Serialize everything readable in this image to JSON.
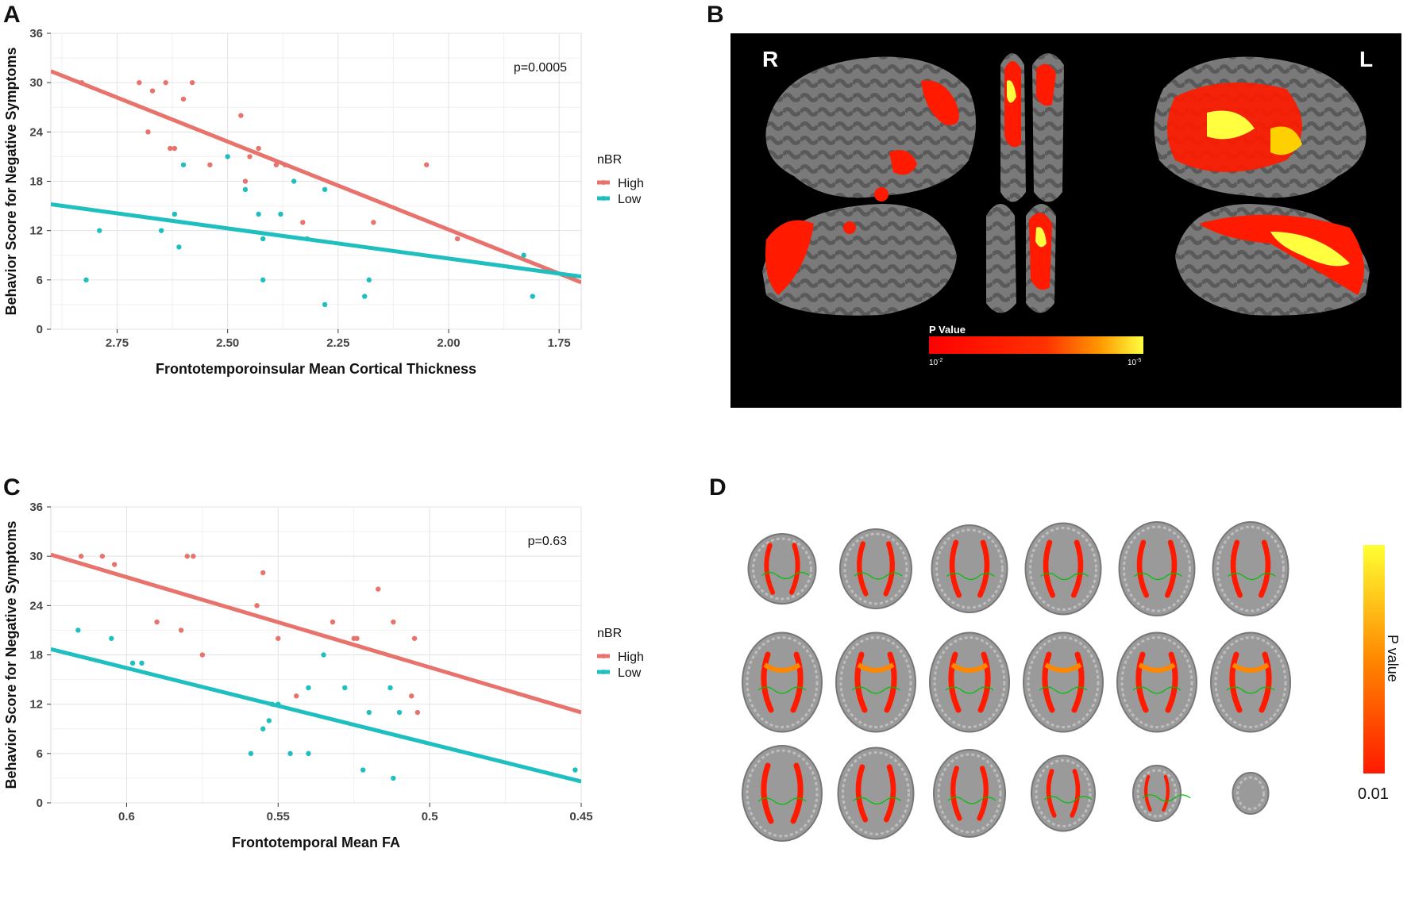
{
  "panels": {
    "a": "A",
    "b": "B",
    "c": "C",
    "d": "D"
  },
  "chart_data": [
    {
      "type": "scatter",
      "id": "chartA",
      "title": "",
      "xlabel": "Frontotemporoinsular Mean Cortical Thickness",
      "ylabel": "Behavior Score for Negative Symptoms",
      "x_reversed": true,
      "xlim": [
        2.9,
        1.7
      ],
      "ylim": [
        0,
        36
      ],
      "xticks": [
        2.75,
        2.5,
        2.25,
        2.0,
        1.75
      ],
      "xtick_labels": [
        "2.75",
        "2.50",
        "2.25",
        "2.00",
        "1.75"
      ],
      "yticks": [
        0,
        6,
        12,
        18,
        24,
        30,
        36
      ],
      "annotation": "p=0.0005",
      "legend_title": "nBR",
      "series": [
        {
          "name": "High",
          "color": "#E8736C",
          "points": [
            [
              2.83,
              30
            ],
            [
              2.7,
              30
            ],
            [
              2.64,
              30
            ],
            [
              2.58,
              30
            ],
            [
              2.67,
              29
            ],
            [
              2.6,
              28
            ],
            [
              2.47,
              26
            ],
            [
              2.68,
              24
            ],
            [
              2.63,
              22
            ],
            [
              2.62,
              22
            ],
            [
              2.43,
              22
            ],
            [
              2.45,
              21
            ],
            [
              2.54,
              20
            ],
            [
              2.39,
              20
            ],
            [
              2.37,
              20
            ],
            [
              2.05,
              20
            ],
            [
              2.46,
              18
            ],
            [
              2.33,
              13
            ],
            [
              2.17,
              13
            ],
            [
              1.98,
              11
            ]
          ],
          "line": [
            [
              2.9,
              31.4
            ],
            [
              1.7,
              5.7
            ]
          ]
        },
        {
          "name": "Low",
          "color": "#1FBFBF",
          "points": [
            [
              2.5,
              21
            ],
            [
              2.6,
              20
            ],
            [
              2.46,
              17
            ],
            [
              2.28,
              17
            ],
            [
              2.35,
              18
            ],
            [
              2.62,
              14
            ],
            [
              2.43,
              14
            ],
            [
              2.38,
              14
            ],
            [
              2.79,
              12
            ],
            [
              2.65,
              12
            ],
            [
              2.42,
              11
            ],
            [
              2.32,
              11
            ],
            [
              2.61,
              10
            ],
            [
              1.83,
              9
            ],
            [
              2.82,
              6
            ],
            [
              2.42,
              6
            ],
            [
              2.18,
              6
            ],
            [
              2.19,
              4
            ],
            [
              1.81,
              4
            ],
            [
              2.28,
              3
            ]
          ],
          "line": [
            [
              2.9,
              15.2
            ],
            [
              1.7,
              6.4
            ]
          ]
        }
      ]
    },
    {
      "type": "scatter",
      "id": "chartC",
      "title": "",
      "xlabel": "Frontotemporal Mean FA",
      "ylabel": "Behavior Score for Negative Symptoms",
      "x_reversed": true,
      "xlim": [
        0.625,
        0.45
      ],
      "ylim": [
        0,
        36
      ],
      "xticks": [
        0.6,
        0.55,
        0.5,
        0.45
      ],
      "xtick_labels": [
        "0.6",
        "0.55",
        "0.5",
        "0.45"
      ],
      "yticks": [
        0,
        6,
        12,
        18,
        24,
        30,
        36
      ],
      "annotation": "p=0.63",
      "legend_title": "nBR",
      "series": [
        {
          "name": "High",
          "color": "#E8736C",
          "points": [
            [
              0.615,
              30
            ],
            [
              0.608,
              30
            ],
            [
              0.604,
              29
            ],
            [
              0.58,
              30
            ],
            [
              0.578,
              30
            ],
            [
              0.555,
              28
            ],
            [
              0.557,
              24
            ],
            [
              0.517,
              26
            ],
            [
              0.59,
              22
            ],
            [
              0.532,
              22
            ],
            [
              0.512,
              22
            ],
            [
              0.582,
              21
            ],
            [
              0.575,
              18
            ],
            [
              0.55,
              20
            ],
            [
              0.525,
              20
            ],
            [
              0.524,
              20
            ],
            [
              0.505,
              20
            ],
            [
              0.544,
              13
            ],
            [
              0.506,
              13
            ],
            [
              0.504,
              11
            ]
          ],
          "line": [
            [
              0.625,
              30.2
            ],
            [
              0.45,
              11.0
            ]
          ]
        },
        {
          "name": "Low",
          "color": "#1FBFBF",
          "points": [
            [
              0.616,
              21
            ],
            [
              0.605,
              20
            ],
            [
              0.598,
              17
            ],
            [
              0.595,
              17
            ],
            [
              0.535,
              18
            ],
            [
              0.54,
              14
            ],
            [
              0.528,
              14
            ],
            [
              0.513,
              14
            ],
            [
              0.52,
              11
            ],
            [
              0.51,
              11
            ],
            [
              0.552,
              12
            ],
            [
              0.55,
              12
            ],
            [
              0.553,
              10
            ],
            [
              0.555,
              9
            ],
            [
              0.559,
              6
            ],
            [
              0.546,
              6
            ],
            [
              0.54,
              6
            ],
            [
              0.522,
              4
            ],
            [
              0.512,
              3
            ],
            [
              0.452,
              4
            ]
          ],
          "line": [
            [
              0.625,
              18.7
            ],
            [
              0.45,
              2.6
            ]
          ]
        }
      ]
    }
  ],
  "brain_b": {
    "label_right": "R",
    "label_left": "L",
    "colorbar_title": "P Value",
    "colorbar_min_base": "10",
    "colorbar_min_exp": "-2",
    "colorbar_max_base": "10",
    "colorbar_max_exp": "-5",
    "colors": {
      "low": "#ff0000",
      "high": "#ffff40",
      "bg": "#000000",
      "cortex": "#6e6e6e"
    }
  },
  "brain_d": {
    "colorbar_title": "P value",
    "colorbar_value": "0.01",
    "colors": {
      "low": "#ff1a00",
      "high": "#ffff33",
      "tract": "#00c000"
    }
  }
}
